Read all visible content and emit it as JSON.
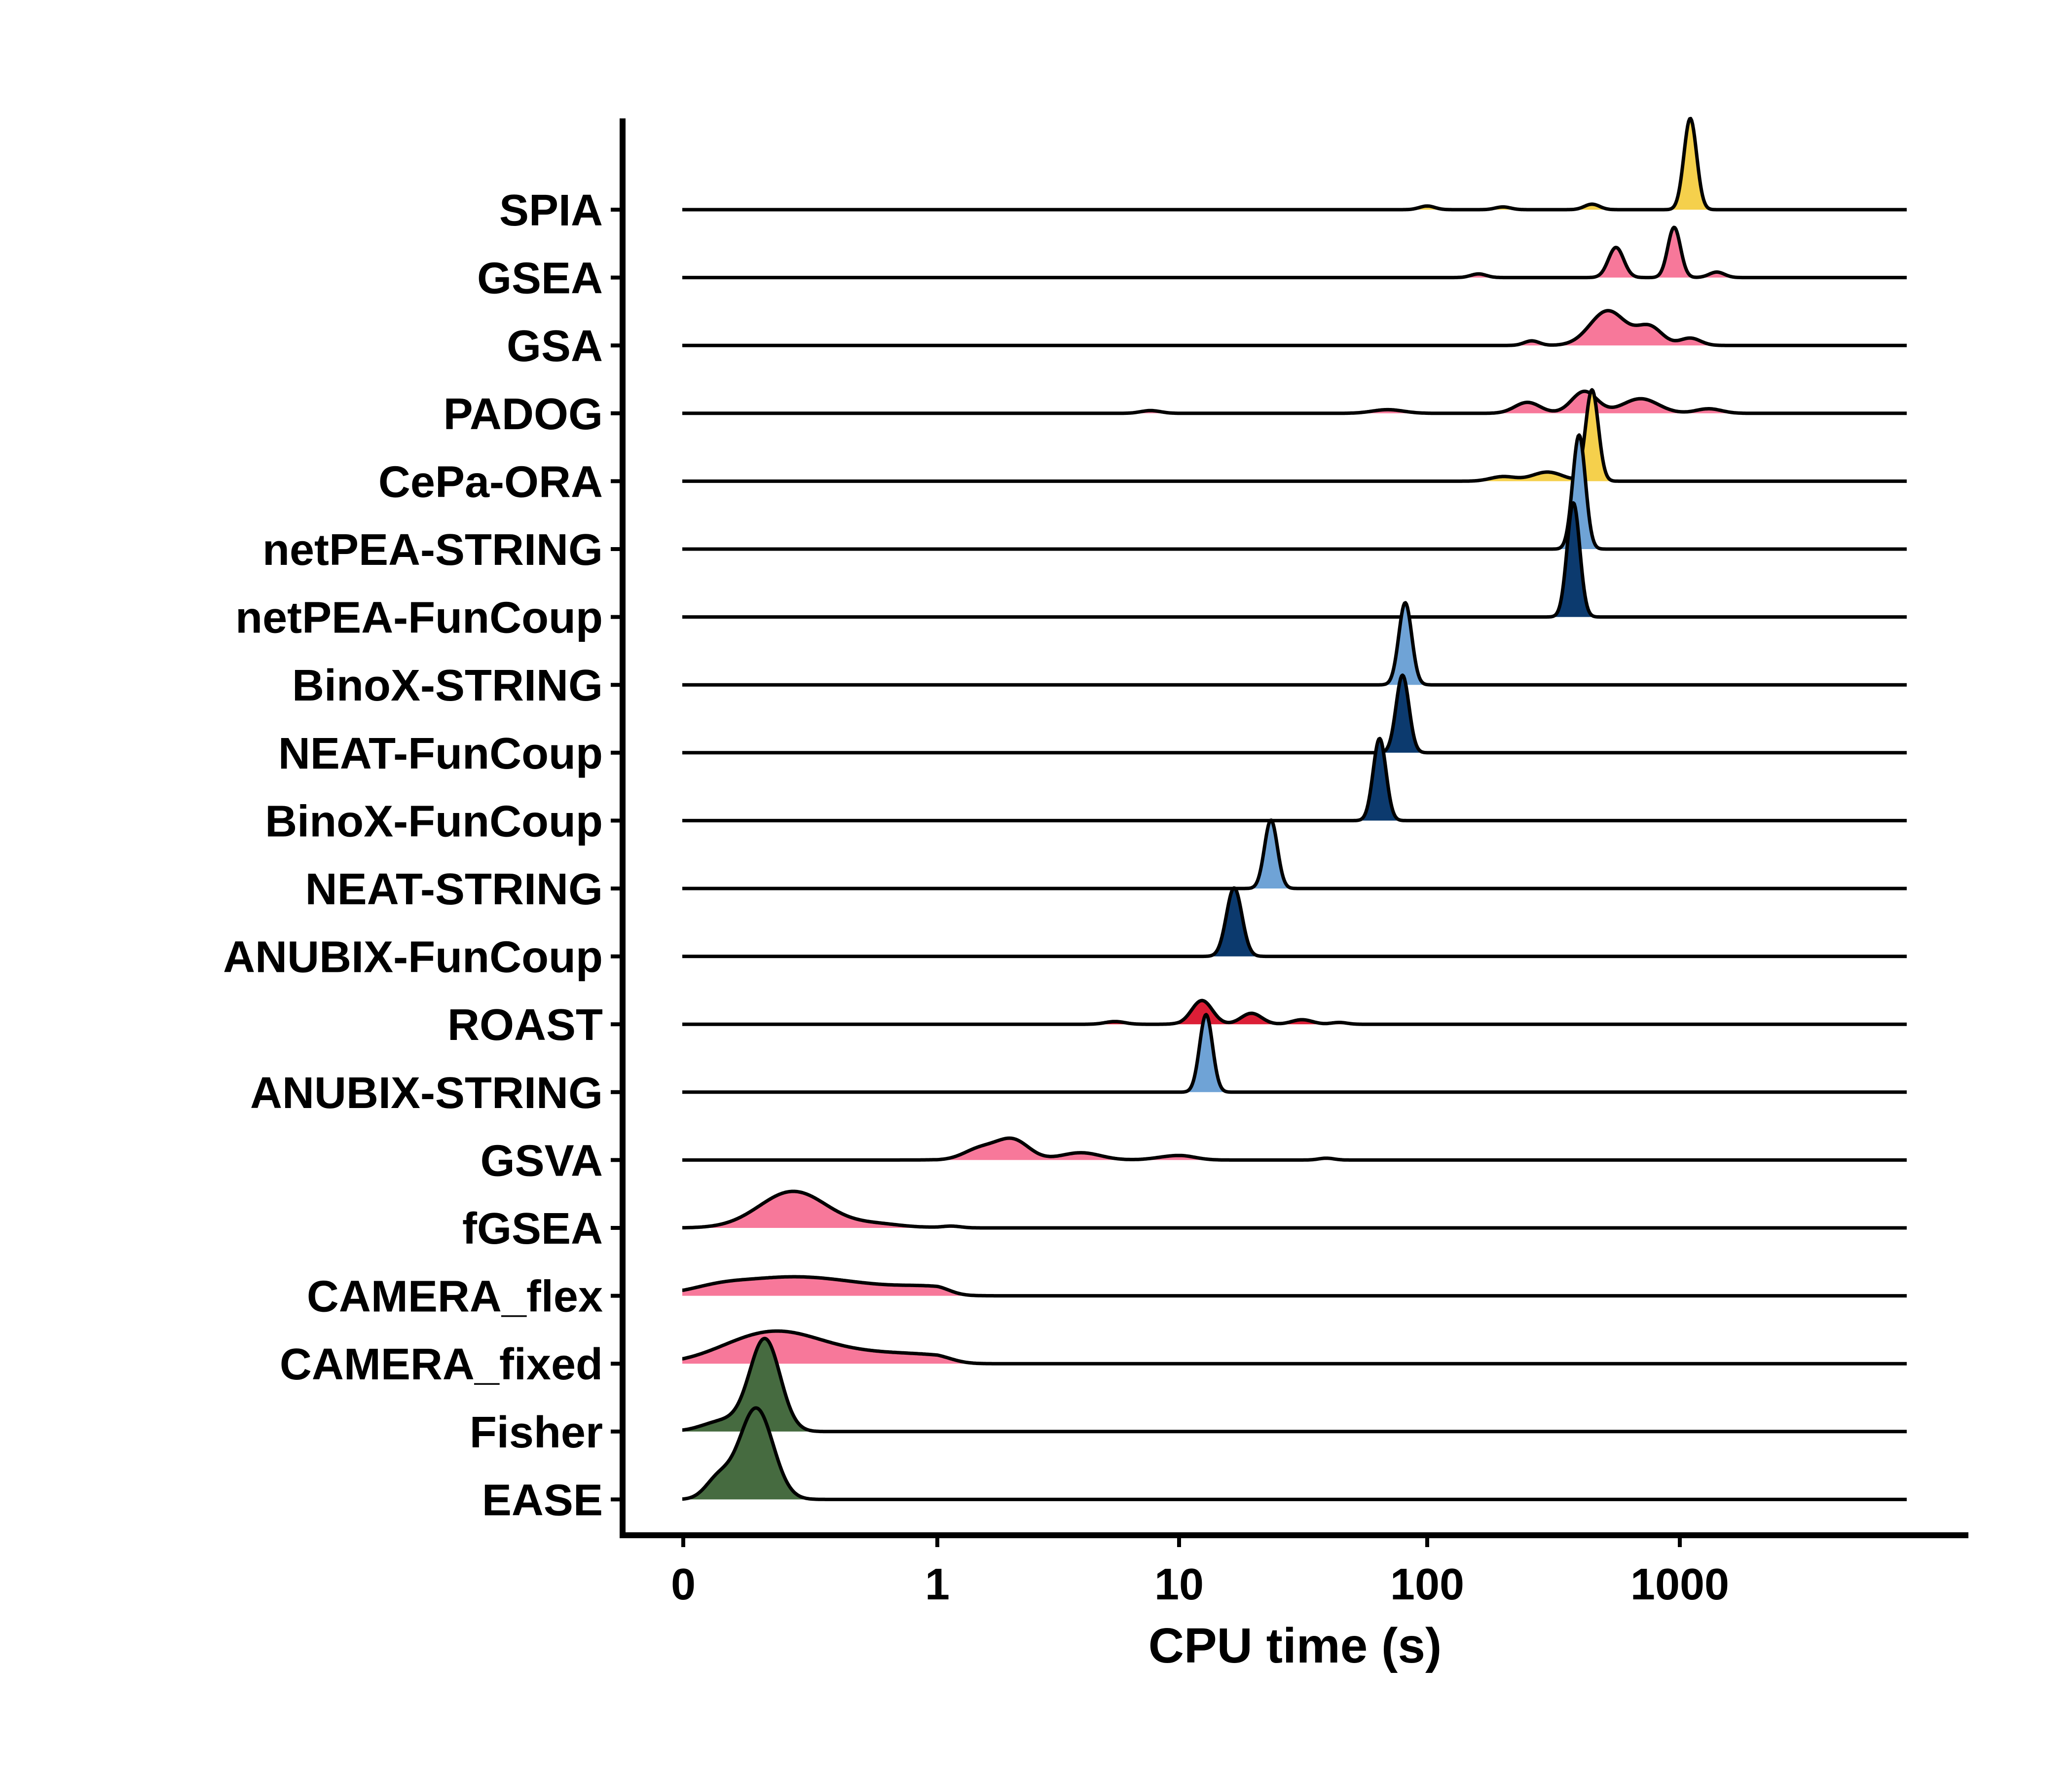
{
  "chart_data": {
    "type": "ridgeline",
    "xlabel": "CPU time (s)",
    "ylabel": "",
    "x_scale": "log1p",
    "x_ticks": [
      0,
      1,
      10,
      100,
      1000
    ],
    "x_tick_labels": [
      "0",
      "1",
      "10",
      "100",
      "1000"
    ],
    "xlim": [
      0,
      8000
    ],
    "grid": false,
    "legend": "none",
    "colors": {
      "yellow": "#f5d04c",
      "pink": "#f7789a",
      "light_blue": "#6fa3d6",
      "dark_blue": "#0c3a6e",
      "red": "#dc1e36",
      "green": "#466b40"
    },
    "series": [
      {
        "name": "SPIA",
        "color": "#f5d04c",
        "peaks": [
          [
            1100,
            1.0,
            0.025
          ],
          [
            450,
            0.06,
            0.03
          ],
          [
            100,
            0.04,
            0.03
          ],
          [
            200,
            0.03,
            0.03
          ]
        ]
      },
      {
        "name": "GSEA",
        "color": "#f7789a",
        "peaks": [
          [
            950,
            0.55,
            0.025
          ],
          [
            560,
            0.33,
            0.03
          ],
          [
            1400,
            0.06,
            0.03
          ],
          [
            160,
            0.04,
            0.03
          ]
        ]
      },
      {
        "name": "GSA",
        "color": "#f7789a",
        "peaks": [
          [
            520,
            0.38,
            0.07
          ],
          [
            760,
            0.2,
            0.05
          ],
          [
            1100,
            0.08,
            0.04
          ],
          [
            260,
            0.05,
            0.03
          ]
        ]
      },
      {
        "name": "PADOG",
        "color": "#f7789a",
        "peaks": [
          [
            420,
            0.24,
            0.05
          ],
          [
            250,
            0.12,
            0.05
          ],
          [
            700,
            0.16,
            0.07
          ],
          [
            1300,
            0.05,
            0.05
          ],
          [
            8,
            0.03,
            0.03
          ],
          [
            70,
            0.04,
            0.06
          ]
        ]
      },
      {
        "name": "CePa-ORA",
        "color": "#f5d04c",
        "peaks": [
          [
            450,
            1.0,
            0.025
          ],
          [
            300,
            0.1,
            0.06
          ],
          [
            200,
            0.05,
            0.05
          ]
        ]
      },
      {
        "name": "netPEA-STRING",
        "color": "#6fa3d6",
        "peaks": [
          [
            400,
            1.25,
            0.025
          ]
        ]
      },
      {
        "name": "netPEA-FunCoup",
        "color": "#0c3a6e",
        "peaks": [
          [
            380,
            1.25,
            0.025
          ]
        ]
      },
      {
        "name": "BinoX-STRING",
        "color": "#6fa3d6",
        "peaks": [
          [
            82,
            0.9,
            0.025
          ]
        ]
      },
      {
        "name": "NEAT-FunCoup",
        "color": "#0c3a6e",
        "peaks": [
          [
            80,
            0.85,
            0.025
          ]
        ]
      },
      {
        "name": "BinoX-FunCoup",
        "color": "#0c3a6e",
        "peaks": [
          [
            65,
            0.9,
            0.025
          ]
        ]
      },
      {
        "name": "NEAT-STRING",
        "color": "#6fa3d6",
        "peaks": [
          [
            24,
            0.75,
            0.025
          ]
        ]
      },
      {
        "name": "ANUBIX-FunCoup",
        "color": "#0c3a6e",
        "peaks": [
          [
            17,
            0.75,
            0.03
          ]
        ]
      },
      {
        "name": "ROAST",
        "color": "#dc1e36",
        "peaks": [
          [
            12.5,
            0.26,
            0.04
          ],
          [
            20,
            0.12,
            0.04
          ],
          [
            32,
            0.05,
            0.04
          ],
          [
            6,
            0.03,
            0.03
          ],
          [
            45,
            0.02,
            0.03
          ]
        ]
      },
      {
        "name": "ANUBIX-STRING",
        "color": "#6fa3d6",
        "peaks": [
          [
            13,
            0.85,
            0.025
          ]
        ]
      },
      {
        "name": "GSVA",
        "color": "#f7789a",
        "peaks": [
          [
            2.4,
            0.22,
            0.05
          ],
          [
            1.7,
            0.12,
            0.05
          ],
          [
            4.5,
            0.08,
            0.06
          ],
          [
            10,
            0.05,
            0.06
          ],
          [
            40,
            0.02,
            0.03
          ]
        ]
      },
      {
        "name": "fGSEA",
        "color": "#f7789a",
        "peaks": [
          [
            0.35,
            0.4,
            0.04
          ],
          [
            0.7,
            0.04,
            0.03
          ],
          [
            1.2,
            0.02,
            0.03
          ]
        ]
      },
      {
        "name": "CAMERA_flex",
        "color": "#f7789a",
        "peaks": [
          [
            0.3,
            0.16,
            0.07
          ],
          [
            0.6,
            0.08,
            0.08
          ],
          [
            1.0,
            0.06,
            0.04
          ],
          [
            0.1,
            0.04,
            0.03
          ]
        ]
      },
      {
        "name": "CAMERA_fixed",
        "color": "#f7789a",
        "peaks": [
          [
            0.28,
            0.28,
            0.05
          ],
          [
            0.55,
            0.12,
            0.07
          ],
          [
            1.0,
            0.06,
            0.05
          ],
          [
            0.12,
            0.05,
            0.04
          ]
        ]
      },
      {
        "name": "Fisher",
        "color": "#466b40",
        "peaks": [
          [
            0.25,
            1.0,
            0.018
          ],
          [
            0.12,
            0.12,
            0.025
          ]
        ]
      },
      {
        "name": "EASE",
        "color": "#466b40",
        "peaks": [
          [
            0.22,
            1.0,
            0.02
          ],
          [
            0.1,
            0.22,
            0.015
          ]
        ]
      }
    ]
  }
}
